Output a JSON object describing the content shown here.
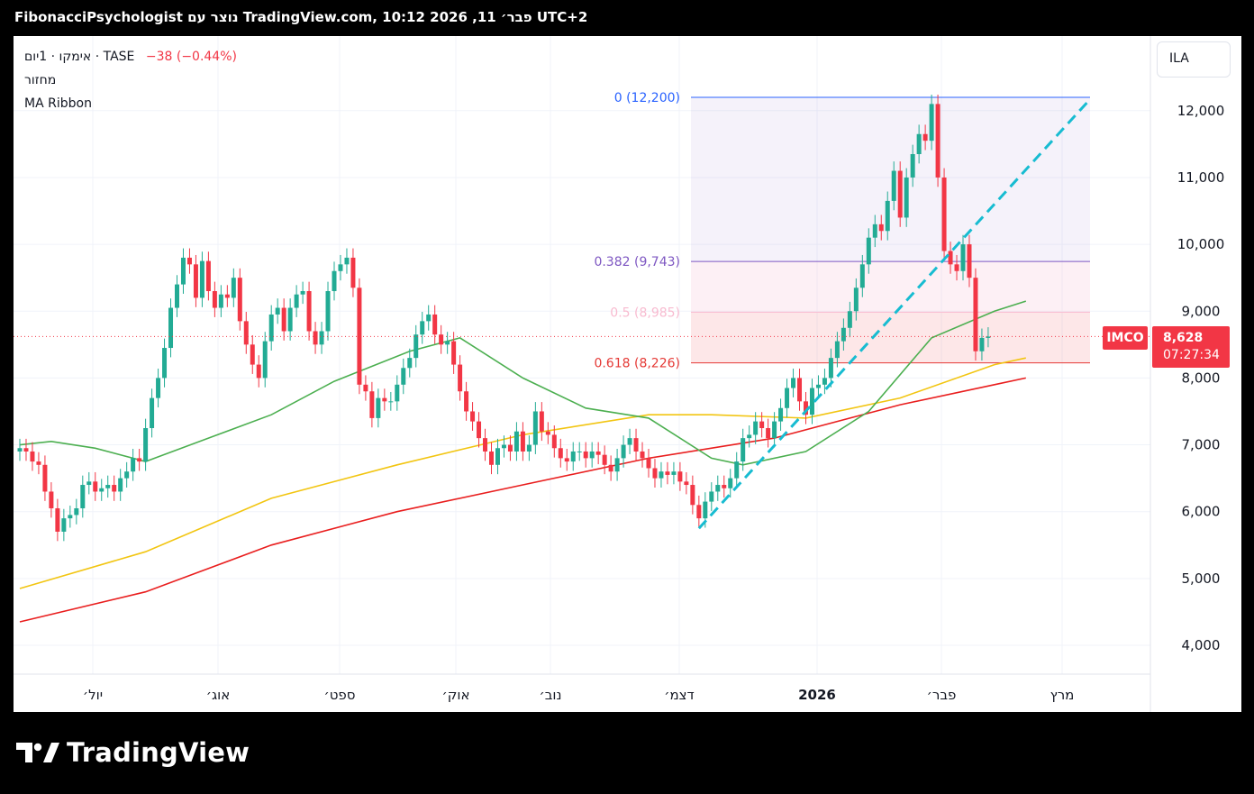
{
  "header": {
    "title": "FibonacciPsychologist נוצר עם TradingView.com, 10:12 2026 ,11 פבר׳ UTC+2"
  },
  "legend": {
    "symbol": "אימקו · 1יום · TASE",
    "change": "−38 (−0.44%)",
    "indicator1": "מחזור",
    "indicator2": "MA Ribbon"
  },
  "currency": "ILA",
  "last_price": {
    "ticker": "IMCO",
    "price": "8,628",
    "countdown": "07:27:34"
  },
  "brand": {
    "name": "TradingView",
    "icon": "tradingview-logo-icon"
  },
  "colors": {
    "up": "#22ab94",
    "down": "#f23645",
    "ma_fast": "#4caf50",
    "ma_mid": "#f2c511",
    "ma_slow": "#e91e1e",
    "trend": "#17bcd1",
    "fib_0": "#2962ff",
    "fib_382": "#7e57c2",
    "fib_5": "#f8bbd0",
    "fib_618": "#e53935"
  },
  "chart_data": {
    "type": "candlestick",
    "y_axis": {
      "ticks": [
        4000,
        5000,
        6000,
        7000,
        8000,
        9000,
        10000,
        11000,
        12000
      ],
      "tick_labels": [
        "4,000",
        "5,000",
        "6,000",
        "7,000",
        "8,000",
        "9,000",
        "10,000",
        "11,000",
        "12,000"
      ]
    },
    "x_axis": {
      "labels": [
        "יול׳",
        "אוג׳",
        "ספט׳",
        "אוק׳",
        "נוב׳",
        "דצמ׳",
        "2026",
        "פבר׳",
        "מרץ"
      ]
    },
    "closes": [
      6950,
      6900,
      6750,
      6700,
      6300,
      6050,
      5700,
      5900,
      5950,
      6050,
      6400,
      6450,
      6300,
      6350,
      6400,
      6300,
      6500,
      6600,
      6800,
      6750,
      7250,
      7700,
      8000,
      8450,
      9050,
      9400,
      9800,
      9700,
      9200,
      9750,
      9300,
      9050,
      9250,
      9200,
      9500,
      8850,
      8500,
      8200,
      8000,
      8550,
      8950,
      9050,
      8700,
      9050,
      9250,
      9300,
      8700,
      8500,
      8700,
      9300,
      9600,
      9700,
      9800,
      9350,
      7900,
      7800,
      7400,
      7700,
      7650,
      7650,
      7900,
      8150,
      8300,
      8650,
      8850,
      8950,
      8650,
      8500,
      8550,
      8200,
      7800,
      7500,
      7350,
      7100,
      6900,
      6700,
      6950,
      7000,
      6900,
      7200,
      6900,
      7000,
      7500,
      7200,
      7150,
      6950,
      6800,
      6750,
      6900,
      6900,
      6800,
      6900,
      6850,
      6700,
      6600,
      6800,
      7000,
      7100,
      6900,
      6800,
      6650,
      6500,
      6600,
      6550,
      6600,
      6450,
      6400,
      6100,
      5900,
      6150,
      6300,
      6400,
      6350,
      6500,
      6750,
      7100,
      7150,
      7350,
      7250,
      7100,
      7350,
      7550,
      7850,
      8000,
      7650,
      7450,
      7850,
      7900,
      8000,
      8300,
      8550,
      8750,
      9000,
      9350,
      9700,
      10100,
      10300,
      10200,
      10650,
      11100,
      10400,
      11000,
      11350,
      11650,
      11550,
      12100,
      11000,
      9900,
      9700,
      9600,
      10000,
      9500,
      8400,
      8600,
      8620
    ],
    "ma_fast": {
      "x": [
        0,
        5,
        12,
        20,
        30,
        40,
        50,
        62,
        70,
        80,
        90,
        100,
        110,
        115,
        125,
        135,
        145,
        155,
        160
      ],
      "y": [
        7000,
        7050,
        6950,
        6750,
        7100,
        7450,
        7950,
        8400,
        8600,
        8000,
        7550,
        7400,
        6800,
        6700,
        6900,
        7500,
        8600,
        9000,
        9150
      ]
    },
    "ma_mid": {
      "x": [
        0,
        20,
        40,
        60,
        80,
        100,
        110,
        125,
        140,
        155,
        160
      ],
      "y": [
        4850,
        5400,
        6200,
        6700,
        7150,
        7450,
        7450,
        7400,
        7700,
        8200,
        8300
      ]
    },
    "ma_slow": {
      "x": [
        0,
        20,
        40,
        60,
        80,
        100,
        120,
        140,
        155,
        160
      ],
      "y": [
        4350,
        4800,
        5500,
        6000,
        6400,
        6800,
        7100,
        7600,
        7900,
        8000
      ]
    },
    "fib_levels": [
      {
        "ratio": "0",
        "value": 12200,
        "label": "0 (12,200)"
      },
      {
        "ratio": "0.382",
        "value": 9743,
        "label": "0.382 (9,743)"
      },
      {
        "ratio": "0.5",
        "value": 8985,
        "label": "0.5 (8,985)"
      },
      {
        "ratio": "0.618",
        "value": 8226,
        "label": "0.618 (8,226)"
      }
    ],
    "trend_line": {
      "x": [
        108,
        170
      ],
      "y": [
        5750,
        12150
      ]
    }
  }
}
